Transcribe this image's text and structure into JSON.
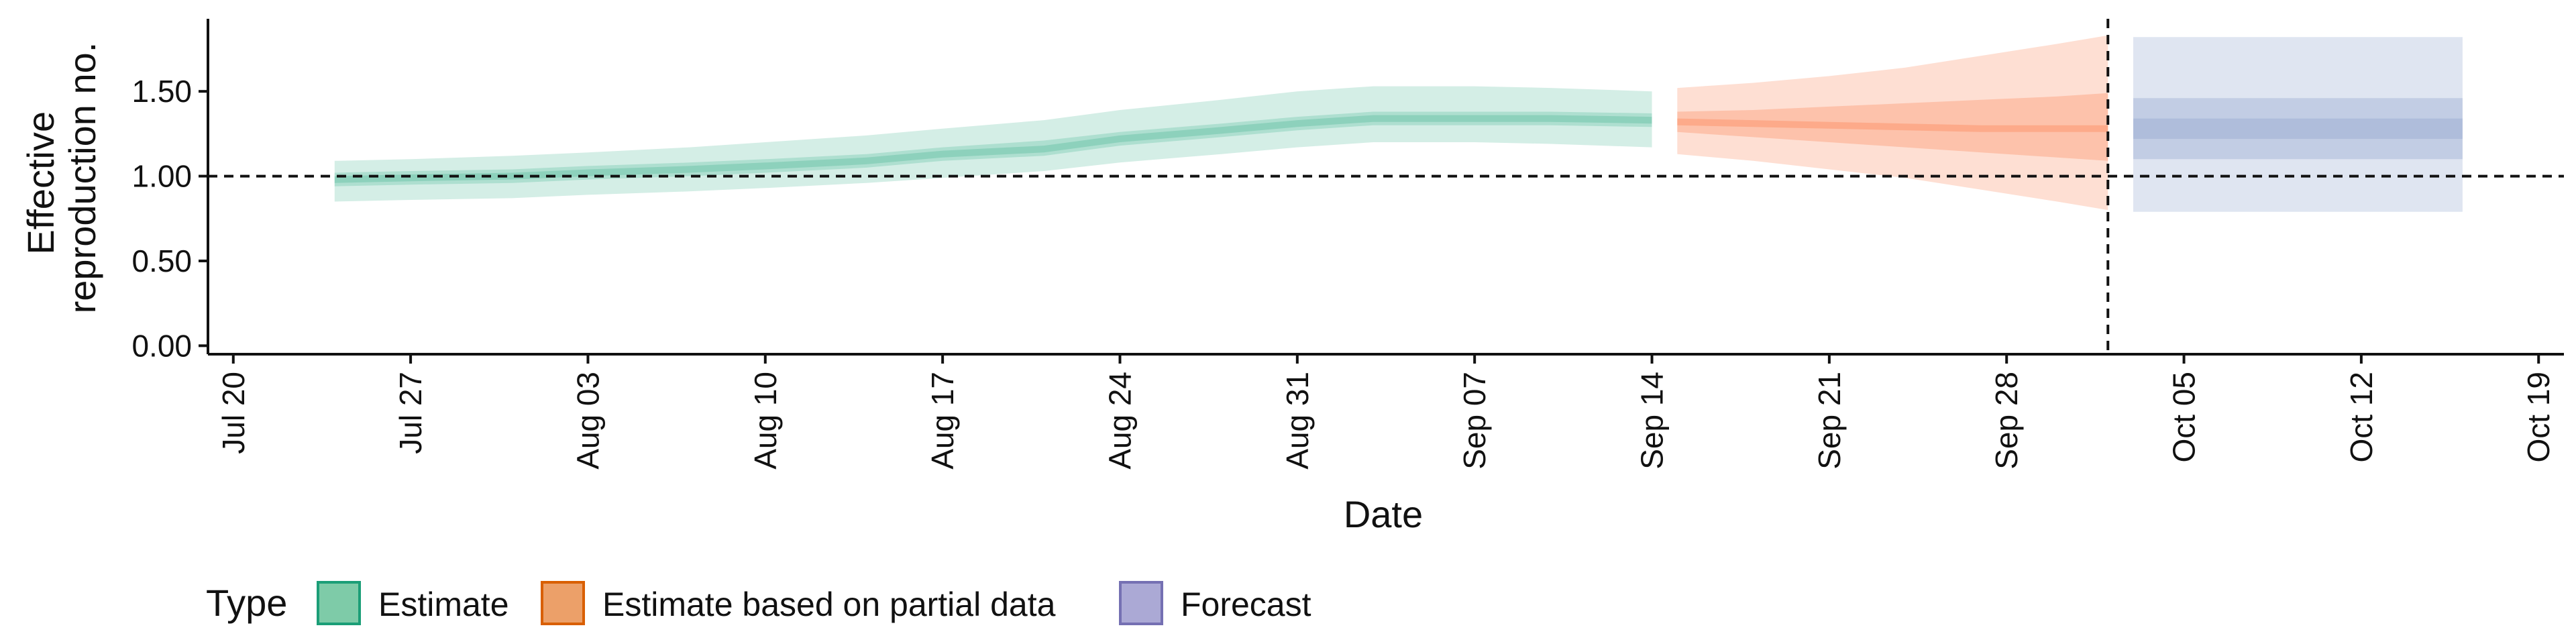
{
  "chart_data": {
    "type": "area",
    "xlabel": "Date",
    "ylabel": [
      "Effective",
      "reproduction no."
    ],
    "xlim": [
      "2020-07-19",
      "2020-10-20"
    ],
    "ylim": [
      -0.05,
      1.92
    ],
    "yticks": [
      0.0,
      0.5,
      1.0,
      1.5
    ],
    "ytick_labels": [
      "0.00",
      "0.50",
      "1.00",
      "1.50"
    ],
    "xticks": [
      "2020-07-20",
      "2020-07-27",
      "2020-08-03",
      "2020-08-10",
      "2020-08-17",
      "2020-08-24",
      "2020-08-31",
      "2020-09-07",
      "2020-09-14",
      "2020-09-21",
      "2020-09-28",
      "2020-10-05",
      "2020-10-12",
      "2020-10-19"
    ],
    "xtick_labels": [
      "Jul 20",
      "Jul 27",
      "Aug 03",
      "Aug 10",
      "Aug 17",
      "Aug 24",
      "Aug 31",
      "Sep 07",
      "Sep 14",
      "Sep 21",
      "Sep 28",
      "Oct 05",
      "Oct 12",
      "Oct 19"
    ],
    "reference_hline": 1.0,
    "reference_vline": "2020-10-02",
    "series": [
      {
        "name": "Estimate",
        "color": "#66C2A5",
        "dates": [
          "2020-07-24",
          "2020-07-27",
          "2020-07-31",
          "2020-08-03",
          "2020-08-07",
          "2020-08-10",
          "2020-08-14",
          "2020-08-17",
          "2020-08-21",
          "2020-08-24",
          "2020-08-28",
          "2020-08-31",
          "2020-09-03",
          "2020-09-07",
          "2020-09-10",
          "2020-09-14"
        ],
        "median": [
          0.98,
          0.99,
          1.0,
          1.02,
          1.04,
          1.06,
          1.09,
          1.13,
          1.16,
          1.22,
          1.27,
          1.31,
          1.34,
          1.34,
          1.34,
          1.33
        ],
        "lower_90": [
          0.85,
          0.86,
          0.87,
          0.89,
          0.91,
          0.93,
          0.96,
          0.99,
          1.03,
          1.08,
          1.13,
          1.17,
          1.2,
          1.2,
          1.19,
          1.17
        ],
        "upper_90": [
          1.09,
          1.1,
          1.12,
          1.14,
          1.17,
          1.2,
          1.24,
          1.28,
          1.33,
          1.39,
          1.45,
          1.5,
          1.53,
          1.53,
          1.52,
          1.5
        ],
        "lower_50": [
          0.94,
          0.95,
          0.96,
          0.98,
          1.0,
          1.02,
          1.05,
          1.09,
          1.12,
          1.18,
          1.23,
          1.27,
          1.3,
          1.3,
          1.3,
          1.29
        ],
        "upper_50": [
          1.02,
          1.03,
          1.04,
          1.06,
          1.08,
          1.1,
          1.13,
          1.17,
          1.21,
          1.26,
          1.31,
          1.35,
          1.38,
          1.38,
          1.38,
          1.37
        ]
      },
      {
        "name": "Estimate based on partial data",
        "color": "#FC8D62",
        "dates": [
          "2020-09-15",
          "2020-09-18",
          "2020-09-21",
          "2020-09-24",
          "2020-09-27",
          "2020-09-30",
          "2020-10-02"
        ],
        "median": [
          1.32,
          1.31,
          1.3,
          1.29,
          1.28,
          1.28,
          1.28
        ],
        "lower_90": [
          1.13,
          1.09,
          1.04,
          0.99,
          0.92,
          0.85,
          0.8
        ],
        "upper_90": [
          1.52,
          1.55,
          1.59,
          1.64,
          1.71,
          1.78,
          1.83
        ],
        "lower_50": [
          1.26,
          1.23,
          1.2,
          1.17,
          1.14,
          1.11,
          1.09
        ],
        "upper_50": [
          1.38,
          1.39,
          1.41,
          1.43,
          1.45,
          1.47,
          1.49
        ]
      },
      {
        "name": "Forecast",
        "color": "#8DA0CB",
        "dates": [
          "2020-10-03",
          "2020-10-16"
        ],
        "median": [
          1.28,
          1.28
        ],
        "lower_90": [
          0.79,
          0.79
        ],
        "upper_90": [
          1.82,
          1.82
        ],
        "lower_50": [
          1.1,
          1.1
        ],
        "upper_50": [
          1.46,
          1.46
        ],
        "lower_20": [
          1.22,
          1.22
        ],
        "upper_20": [
          1.34,
          1.34
        ]
      }
    ],
    "legend": {
      "title": "Type",
      "position": "bottom",
      "items": [
        {
          "label": "Estimate",
          "fill": "#7ECBA8",
          "stroke": "#1B9E77"
        },
        {
          "label": "Estimate based on partial data",
          "fill": "#ECA069",
          "stroke": "#D95F02"
        },
        {
          "label": "Forecast",
          "fill": "#ABA9D5",
          "stroke": "#7570B3"
        }
      ]
    }
  }
}
